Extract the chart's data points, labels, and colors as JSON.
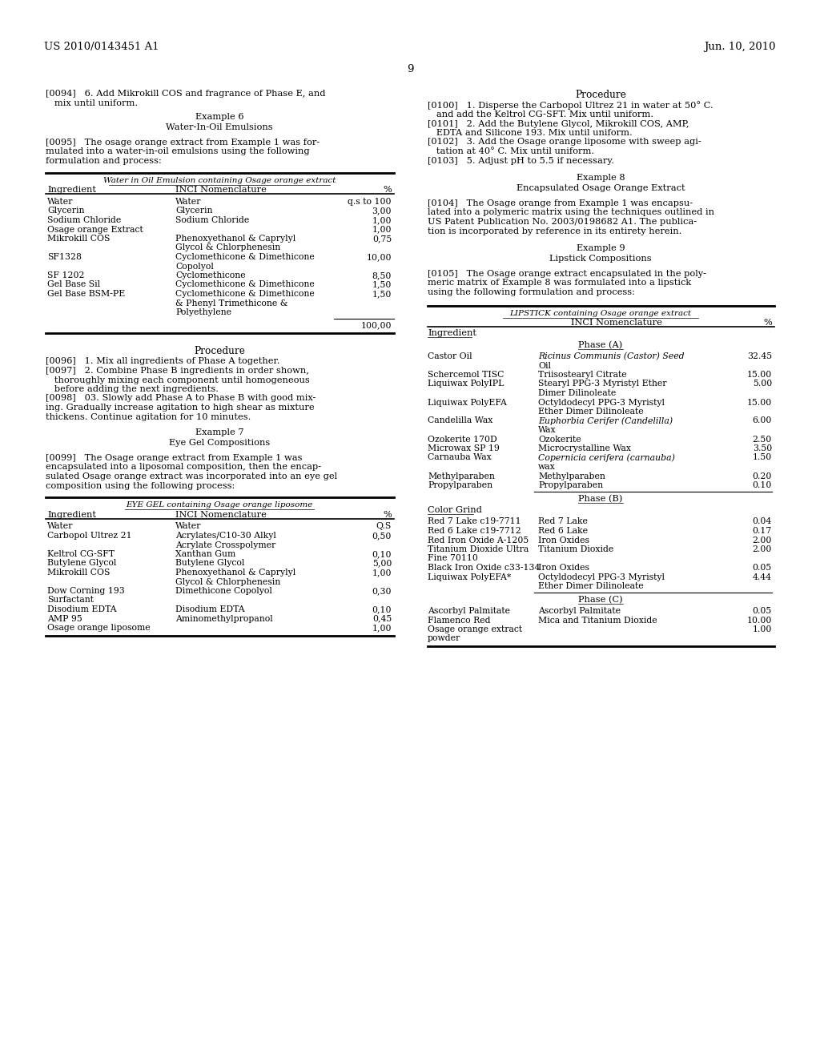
{
  "bg_color": "#ffffff",
  "header_left": "US 2010/0143451 A1",
  "header_right": "Jun. 10, 2010",
  "page_number": "9",
  "left_col": {
    "para0094_l1": "[0094]   6. Add Mikrokill COS and fragrance of Phase E, and",
    "para0094_l2": "   mix until uniform.",
    "example6_title": "Example 6",
    "example6_sub": "Water-In-Oil Emulsions",
    "para0095_l1": "[0095]   The osage orange extract from Example 1 was for-",
    "para0095_l2": "mulated into a water-in-oil emulsions using the following",
    "para0095_l3": "formulation and process:",
    "table1_title": "Water in Oil Emulsion containing Osage orange extract",
    "table1_col1": "Ingredient",
    "table1_col2": "INCI Nomenclature",
    "table1_col3": "%",
    "table1_rows": [
      [
        "Water",
        "Water",
        "q.s to 100"
      ],
      [
        "Glycerin",
        "Glycerin",
        "3,00"
      ],
      [
        "Sodium Chloride",
        "Sodium Chloride",
        "1,00"
      ],
      [
        "Osage orange Extract",
        "",
        "1,00"
      ],
      [
        "Mikrokill COS",
        "Phenoxyethanol & Caprylyl",
        "0,75"
      ],
      [
        "",
        "Glycol & Chlorphenesin",
        ""
      ],
      [
        "SF1328",
        "Cyclomethicone & Dimethicone",
        "10,00"
      ],
      [
        "",
        "Copolyol",
        ""
      ],
      [
        "SF 1202",
        "Cyclomethicone",
        "8,50"
      ],
      [
        "Gel Base Sil",
        "Cyclomethicone & Dimethicone",
        "1,50"
      ],
      [
        "Gel Base BSM-PE",
        "Cyclomethicone & Dimethicone",
        "1,50"
      ],
      [
        "",
        "& Phenyl Trimethicone &",
        ""
      ],
      [
        "",
        "Polyethylene",
        ""
      ]
    ],
    "table1_total": "100,00",
    "proc1_title": "Procedure",
    "para0096": "[0096]   1. Mix all ingredients of Phase A together.",
    "para0097_l1": "[0097]   2. Combine Phase B ingredients in order shown,",
    "para0097_l2": "   thoroughly mixing each component until homogeneous",
    "para0097_l3": "   before adding the next ingredients.",
    "para0098_l1": "[0098]   03. Slowly add Phase A to Phase B with good mix-",
    "para0098_l2": "ing. Gradually increase agitation to high shear as mixture",
    "para0098_l3": "thickens. Continue agitation for 10 minutes.",
    "example7_title": "Example 7",
    "example7_sub": "Eye Gel Compositions",
    "para0099_l1": "[0099]   The Osage orange extract from Example 1 was",
    "para0099_l2": "encapsulated into a liposomal composition, then the encap-",
    "para0099_l3": "sulated Osage orange extract was incorporated into an eye gel",
    "para0099_l4": "composition using the following process:",
    "table2_title": "EYE GEL containing Osage orange liposome",
    "table2_col1": "Ingredient",
    "table2_col2": "INCI Nomenclature",
    "table2_col3": "%",
    "table2_rows": [
      [
        "Water",
        "Water",
        "Q.S"
      ],
      [
        "Carbopol Ultrez 21",
        "Acrylates/C10-30 Alkyl",
        "0,50"
      ],
      [
        "",
        "Acrylate Crosspolymer",
        ""
      ],
      [
        "Keltrol CG-SFT",
        "Xanthan Gum",
        "0,10"
      ],
      [
        "Butylene Glycol",
        "Butylene Glycol",
        "5,00"
      ],
      [
        "Mikrokill COS",
        "Phenoxyethanol & Caprylyl",
        "1,00"
      ],
      [
        "",
        "Glycol & Chlorphenesin",
        ""
      ],
      [
        "Dow Corning 193",
        "Dimethicone Copolyol",
        "0,30"
      ],
      [
        "Surfactant",
        "",
        ""
      ],
      [
        "Disodium EDTA",
        "Disodium EDTA",
        "0,10"
      ],
      [
        "AMP 95",
        "Aminomethylpropanol",
        "0,45"
      ],
      [
        "Osage orange liposome",
        "",
        "1,00"
      ]
    ]
  },
  "right_col": {
    "proc2_title": "Procedure",
    "para0100_l1": "[0100]   1. Disperse the Carbopol Ultrez 21 in water at 50° C.",
    "para0100_l2": "   and add the Keltrol CG-SFT. Mix until uniform.",
    "para0101_l1": "[0101]   2. Add the Butylene Glycol, Mikrokill COS, AMP,",
    "para0101_l2": "   EDTA and Silicone 193. Mix until uniform.",
    "para0102_l1": "[0102]   3. Add the Osage orange liposome with sweep agi-",
    "para0102_l2": "   tation at 40° C. Mix until uniform.",
    "para0103": "[0103]   5. Adjust pH to 5.5 if necessary.",
    "example8_title": "Example 8",
    "example8_sub": "Encapsulated Osage Orange Extract",
    "para0104_l1": "[0104]   The Osage orange from Example 1 was encapsu-",
    "para0104_l2": "lated into a polymeric matrix using the techniques outlined in",
    "para0104_l3": "US Patent Publication No. 2003/0198682 A1. The publica-",
    "para0104_l4": "tion is incorporated by reference in its entirety herein.",
    "example9_title": "Example 9",
    "example9_sub": "Lipstick Compositions",
    "para0105_l1": "[0105]   The Osage orange extract encapsulated in the poly-",
    "para0105_l2": "meric matrix of Example 8 was formulated into a lipstick",
    "para0105_l3": "using the following formulation and process:",
    "table3_title": "LIPSTICK containing Osage orange extract",
    "table3_col1": "Ingredient",
    "table3_col2": "INCI Nomenclature",
    "table3_col3": "%",
    "table3_phaseA": "Phase (A)",
    "table3_rows_A": [
      [
        "Castor Oil",
        "Ricinus Communis (Castor) Seed",
        "32.45"
      ],
      [
        "",
        "Oil",
        ""
      ],
      [
        "Schercemol TISC",
        "Triisostearyl Citrate",
        "15.00"
      ],
      [
        "Liquiwax PolyIPL",
        "Stearyl PPG-3 Myristyl Ether",
        "5.00"
      ],
      [
        "",
        "Dimer Dilinoleate",
        ""
      ],
      [
        "Liquiwax PolyEFA",
        "Octyldodecyl PPG-3 Myristyl",
        "15.00"
      ],
      [
        "",
        "Ether Dimer Dilinoleate",
        ""
      ],
      [
        "Candelilla Wax",
        "Euphorbia Cerifer (Candelilla)",
        "6.00"
      ],
      [
        "",
        "Wax",
        ""
      ],
      [
        "Ozokerite 170D",
        "Ozokerite",
        "2.50"
      ],
      [
        "Microwax SP 19",
        "Microcrystalline Wax",
        "3.50"
      ],
      [
        "Carnauba Wax",
        "Copernicia cerifera (carnauba)",
        "1.50"
      ],
      [
        "",
        "wax",
        ""
      ],
      [
        "Methylparaben",
        "Methylparaben",
        "0.20"
      ],
      [
        "Propylparaben",
        "Propylparaben",
        "0.10"
      ]
    ],
    "table3_phaseB": "Phase (B)",
    "table3_colorgrind": "Color Grind",
    "table3_rows_B": [
      [
        "Red 7 Lake c19-7711",
        "Red 7 Lake",
        "0.04"
      ],
      [
        "Red 6 Lake c19-7712",
        "Red 6 Lake",
        "0.17"
      ],
      [
        "Red Iron Oxide A-1205",
        "Iron Oxides",
        "2.00"
      ],
      [
        "Titanium Dioxide Ultra",
        "Titanium Dioxide",
        "2.00"
      ],
      [
        "Fine 70110",
        "",
        ""
      ],
      [
        "Black Iron Oxide c33-134",
        "Iron Oxides",
        "0.05"
      ],
      [
        "Liquiwax PolyEFA*",
        "Octyldodecyl PPG-3 Myristyl",
        "4.44"
      ],
      [
        "",
        "Ether Dimer Dilinoleate",
        ""
      ]
    ],
    "table3_phaseC": "Phase (C)",
    "table3_rows_C": [
      [
        "Ascorbyl Palmitate",
        "Ascorbyl Palmitate",
        "0.05"
      ],
      [
        "Flamenco Red",
        "Mica and Titanium Dioxide",
        "10.00"
      ],
      [
        "Osage orange extract",
        "",
        "1.00"
      ],
      [
        "powder",
        "",
        ""
      ]
    ]
  }
}
